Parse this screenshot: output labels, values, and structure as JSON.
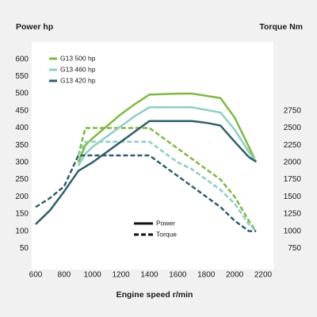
{
  "chart_data": {
    "type": "line",
    "y_label": "Power hp",
    "y2_label": "Torque Nm",
    "x_label": "Engine speed r/min",
    "xlim": [
      600,
      2200
    ],
    "xticks": [
      600,
      800,
      1000,
      1200,
      1400,
      1600,
      1800,
      2000,
      2200
    ],
    "ylim": [
      0,
      650
    ],
    "yticks": [
      50,
      100,
      150,
      200,
      250,
      300,
      350,
      400,
      450,
      500,
      550,
      600
    ],
    "y2lim": [
      500,
      3750
    ],
    "y2ticks": [
      750,
      1000,
      1250,
      1500,
      1750,
      2000,
      2250,
      2500,
      2750
    ],
    "grid": false,
    "series": [
      {
        "name": "G13 500 hp",
        "color": "#7dbb3b",
        "power": {
          "x": [
            900,
            950,
            1000,
            1100,
            1200,
            1300,
            1400,
            1600,
            1700,
            1900,
            2000,
            2100,
            2150
          ],
          "values": [
            300,
            350,
            370,
            405,
            440,
            470,
            497,
            500,
            500,
            487,
            430,
            345,
            300
          ]
        },
        "torque": {
          "axis": "y2",
          "x": [
            900,
            950,
            1400,
            1500,
            1600,
            1700,
            1800,
            1900,
            2000,
            2100,
            2150
          ],
          "values": [
            2100,
            2500,
            2500,
            2350,
            2200,
            2050,
            1900,
            1750,
            1500,
            1150,
            1000
          ]
        }
      },
      {
        "name": "G13 460 hp",
        "color": "#8bcfc7",
        "power": {
          "x": [
            900,
            950,
            1000,
            1100,
            1200,
            1300,
            1400,
            1700,
            1900,
            2000,
            2100,
            2150
          ],
          "values": [
            290,
            325,
            345,
            375,
            405,
            435,
            460,
            460,
            445,
            395,
            330,
            302
          ]
        },
        "torque": {
          "axis": "y2",
          "x": [
            900,
            950,
            1400,
            1500,
            1600,
            1700,
            1800,
            1900,
            2000,
            2100,
            2150
          ],
          "values": [
            2100,
            2300,
            2300,
            2150,
            2000,
            1900,
            1750,
            1600,
            1400,
            1100,
            1000
          ]
        }
      },
      {
        "name": "G13 420 hp",
        "color": "#2f5f6e",
        "power": {
          "x": [
            600,
            700,
            800,
            900,
            1000,
            1100,
            1200,
            1300,
            1400,
            1700,
            1800,
            1900,
            2000,
            2100,
            2150
          ],
          "values": [
            120,
            160,
            215,
            275,
            300,
            330,
            360,
            390,
            420,
            420,
            415,
            407,
            360,
            315,
            302
          ]
        },
        "torque": {
          "axis": "y2",
          "x": [
            600,
            700,
            800,
            900,
            1000,
            1400,
            1500,
            1600,
            1700,
            1800,
            1900,
            2000,
            2100,
            2150
          ],
          "values": [
            1350,
            1480,
            1650,
            2100,
            2100,
            2100,
            1950,
            1800,
            1650,
            1500,
            1350,
            1150,
            1000,
            1000
          ]
        }
      }
    ],
    "line_styles": [
      {
        "label": "Power",
        "style": "solid"
      },
      {
        "label": "Torque",
        "style": "dashed"
      }
    ]
  }
}
